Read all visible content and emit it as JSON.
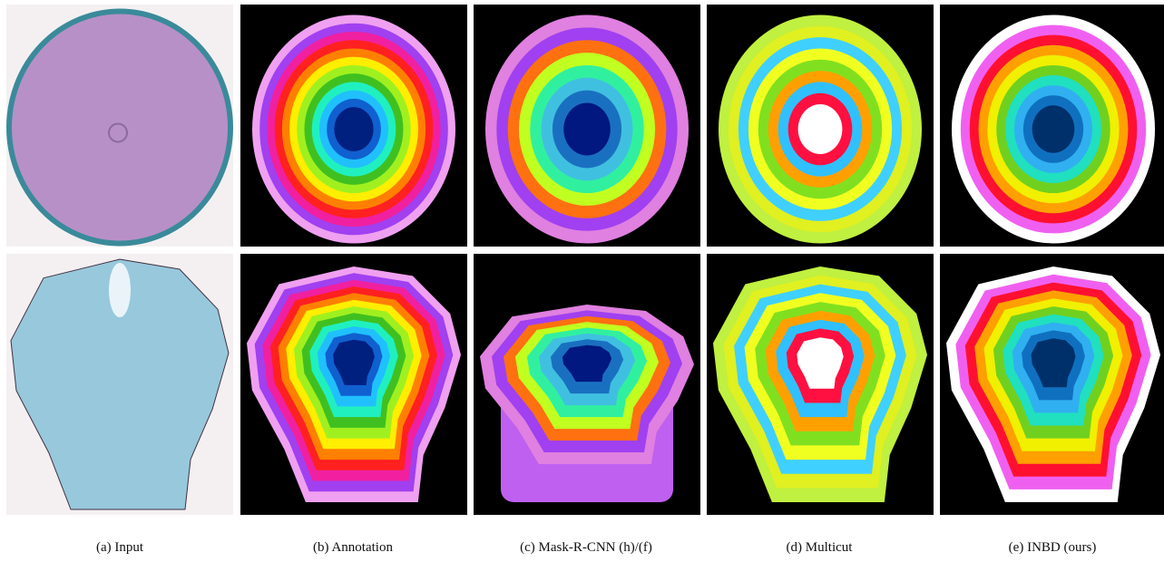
{
  "captions": [
    "(a) Input",
    "(b) Annotation",
    "(c) Mask-R-CNN (h)/(f)",
    "(d) Multicut",
    "(e) INBD (ours)"
  ]
}
